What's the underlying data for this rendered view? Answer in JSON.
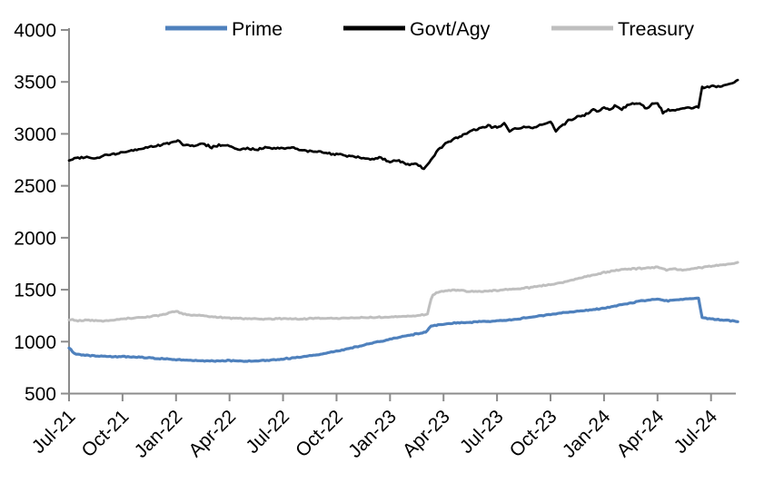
{
  "colors": {
    "background": "#FFFFFF",
    "axis": "#8C8C8C",
    "text": "#000000",
    "prime_blue": "#4F81BD",
    "govt_black": "#000000",
    "treasury_gray": "#BFBFBF"
  },
  "legend": [
    {
      "label": "Prime",
      "color": "#4F81BD"
    },
    {
      "label": "Govt/Agy",
      "color": "#000000"
    },
    {
      "label": "Treasury",
      "color": "#BFBFBF"
    }
  ],
  "chart_data": {
    "type": "line",
    "title": "",
    "xlabel": "",
    "ylabel": "",
    "grid": false,
    "legend_position": "top",
    "ylim": [
      500,
      4000
    ],
    "y_axis": {
      "ticks": [
        500,
        1000,
        1500,
        2000,
        2500,
        3000,
        3500,
        4000
      ]
    },
    "x_axis": {
      "tick_labels": [
        "Jul-21",
        "Oct-21",
        "Jan-22",
        "Apr-22",
        "Jul-22",
        "Oct-22",
        "Jan-23",
        "Apr-23",
        "Jul-23",
        "Oct-23",
        "Jan-24",
        "Apr-24",
        "Jul-24"
      ],
      "months_per_tick": 3,
      "label_rotation_deg": -45
    },
    "x_unit": "months since Jul-2021 (fractional = intra-month)",
    "series": [
      {
        "name": "Prime",
        "color": "#4F81BD",
        "width": 3.2,
        "jitter": 6,
        "points": [
          [
            0,
            945
          ],
          [
            0.3,
            885
          ],
          [
            1,
            866
          ],
          [
            2,
            858
          ],
          [
            3,
            856
          ],
          [
            4,
            850
          ],
          [
            5,
            838
          ],
          [
            6,
            827
          ],
          [
            7,
            820
          ],
          [
            8,
            814
          ],
          [
            9,
            817
          ],
          [
            10,
            811
          ],
          [
            11,
            818
          ],
          [
            12,
            832
          ],
          [
            13,
            852
          ],
          [
            14,
            876
          ],
          [
            15,
            906
          ],
          [
            16,
            946
          ],
          [
            17,
            986
          ],
          [
            18,
            1022
          ],
          [
            19,
            1060
          ],
          [
            19.6,
            1078
          ],
          [
            20,
            1092
          ],
          [
            20.3,
            1150
          ],
          [
            21,
            1170
          ],
          [
            22,
            1182
          ],
          [
            23,
            1192
          ],
          [
            24,
            1200
          ],
          [
            25,
            1213
          ],
          [
            26,
            1238
          ],
          [
            27,
            1262
          ],
          [
            28,
            1284
          ],
          [
            29,
            1300
          ],
          [
            30,
            1322
          ],
          [
            31,
            1356
          ],
          [
            32,
            1390
          ],
          [
            33,
            1408
          ],
          [
            33.6,
            1390
          ],
          [
            34,
            1402
          ],
          [
            35,
            1416
          ],
          [
            35.3,
            1420
          ],
          [
            35.5,
            1232
          ],
          [
            36,
            1218
          ],
          [
            36.8,
            1206
          ],
          [
            37.5,
            1192
          ]
        ]
      },
      {
        "name": "Govt/Agy",
        "color": "#000000",
        "width": 2.7,
        "jitter": 12,
        "points": [
          [
            0,
            2755
          ],
          [
            1,
            2778
          ],
          [
            1.5,
            2762
          ],
          [
            2,
            2790
          ],
          [
            3,
            2822
          ],
          [
            4,
            2852
          ],
          [
            5,
            2890
          ],
          [
            5.8,
            2920
          ],
          [
            6.1,
            2938
          ],
          [
            6.4,
            2898
          ],
          [
            7,
            2886
          ],
          [
            7.5,
            2905
          ],
          [
            8,
            2872
          ],
          [
            8.5,
            2895
          ],
          [
            9,
            2888
          ],
          [
            9.5,
            2852
          ],
          [
            10,
            2862
          ],
          [
            10.5,
            2845
          ],
          [
            11,
            2868
          ],
          [
            12,
            2858
          ],
          [
            12.5,
            2870
          ],
          [
            13,
            2845
          ],
          [
            14,
            2825
          ],
          [
            15,
            2802
          ],
          [
            16,
            2782
          ],
          [
            17,
            2752
          ],
          [
            17.5,
            2770
          ],
          [
            18,
            2730
          ],
          [
            18.5,
            2745
          ],
          [
            19,
            2705
          ],
          [
            19.5,
            2712
          ],
          [
            19.9,
            2665
          ],
          [
            20.3,
            2748
          ],
          [
            20.7,
            2845
          ],
          [
            21,
            2890
          ],
          [
            21.5,
            2945
          ],
          [
            22,
            2975
          ],
          [
            22.5,
            3028
          ],
          [
            23,
            3048
          ],
          [
            23.5,
            3078
          ],
          [
            24,
            3058
          ],
          [
            24.4,
            3098
          ],
          [
            24.7,
            3025
          ],
          [
            25,
            3048
          ],
          [
            25.5,
            3068
          ],
          [
            26,
            3058
          ],
          [
            26.5,
            3088
          ],
          [
            27,
            3108
          ],
          [
            27.3,
            3028
          ],
          [
            27.7,
            3082
          ],
          [
            28,
            3128
          ],
          [
            28.5,
            3162
          ],
          [
            29,
            3188
          ],
          [
            29.4,
            3238
          ],
          [
            29.7,
            3215
          ],
          [
            30,
            3262
          ],
          [
            30.3,
            3228
          ],
          [
            30.6,
            3270
          ],
          [
            31,
            3242
          ],
          [
            31.4,
            3285
          ],
          [
            32,
            3292
          ],
          [
            32.4,
            3245
          ],
          [
            32.7,
            3290
          ],
          [
            33,
            3298
          ],
          [
            33.3,
            3205
          ],
          [
            33.6,
            3232
          ],
          [
            34,
            3228
          ],
          [
            34.5,
            3248
          ],
          [
            35,
            3252
          ],
          [
            35.3,
            3262
          ],
          [
            35.5,
            3448
          ],
          [
            36,
            3462
          ],
          [
            36.4,
            3450
          ],
          [
            37,
            3478
          ],
          [
            37.5,
            3512
          ]
        ]
      },
      {
        "name": "Treasury",
        "color": "#BFBFBF",
        "width": 3.0,
        "jitter": 7,
        "points": [
          [
            0,
            1212
          ],
          [
            0.5,
            1202
          ],
          [
            1,
            1206
          ],
          [
            2,
            1200
          ],
          [
            3,
            1218
          ],
          [
            4,
            1232
          ],
          [
            5,
            1252
          ],
          [
            6,
            1295
          ],
          [
            6.5,
            1262
          ],
          [
            7,
            1255
          ],
          [
            8,
            1240
          ],
          [
            9,
            1228
          ],
          [
            10,
            1222
          ],
          [
            11,
            1218
          ],
          [
            12,
            1222
          ],
          [
            13,
            1218
          ],
          [
            14,
            1226
          ],
          [
            15,
            1222
          ],
          [
            16,
            1228
          ],
          [
            17,
            1232
          ],
          [
            18,
            1236
          ],
          [
            19,
            1246
          ],
          [
            19.8,
            1256
          ],
          [
            20.1,
            1268
          ],
          [
            20.35,
            1442
          ],
          [
            20.7,
            1480
          ],
          [
            21,
            1488
          ],
          [
            21.5,
            1494
          ],
          [
            22,
            1496
          ],
          [
            22.4,
            1478
          ],
          [
            23,
            1484
          ],
          [
            24,
            1494
          ],
          [
            25,
            1506
          ],
          [
            26,
            1524
          ],
          [
            27,
            1548
          ],
          [
            28,
            1582
          ],
          [
            29,
            1625
          ],
          [
            30,
            1666
          ],
          [
            31,
            1694
          ],
          [
            32,
            1704
          ],
          [
            33,
            1716
          ],
          [
            33.5,
            1690
          ],
          [
            34,
            1702
          ],
          [
            34.4,
            1684
          ],
          [
            35,
            1702
          ],
          [
            36,
            1724
          ],
          [
            37,
            1744
          ],
          [
            37.5,
            1762
          ]
        ]
      }
    ]
  }
}
